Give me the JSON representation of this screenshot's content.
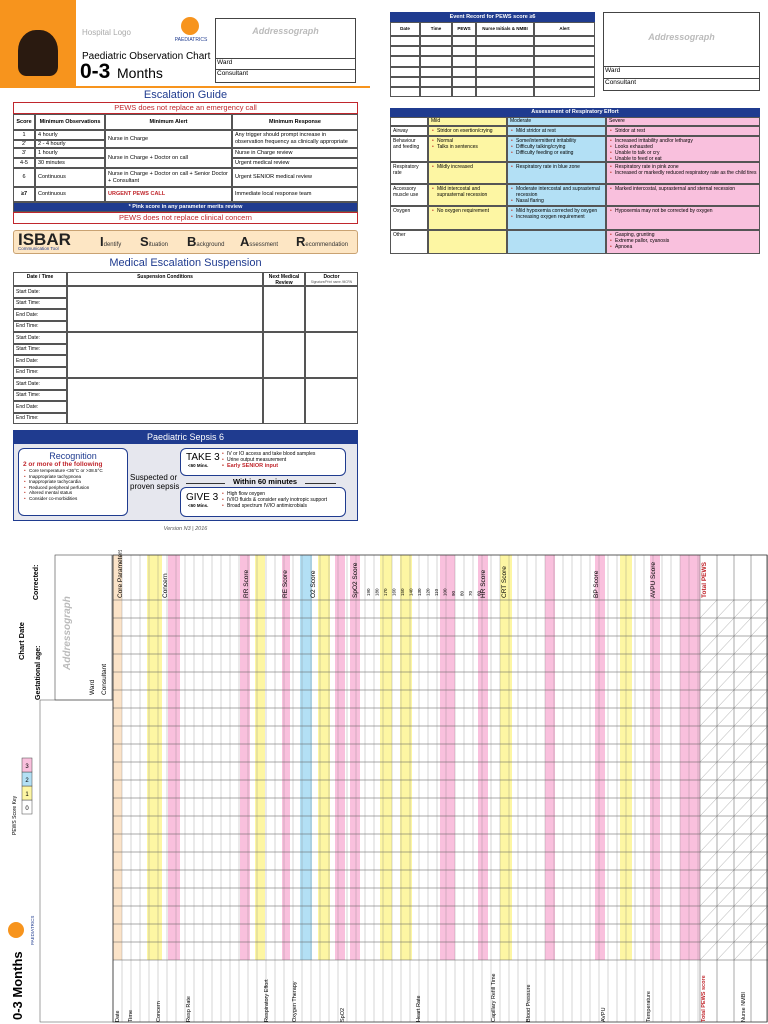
{
  "header": {
    "hospital_logo": "Hospital Logo",
    "paediatrics": "PAEDIATRICS",
    "title": "Paediatric Observation Chart",
    "age": "0-3",
    "age_unit": "Months",
    "addressograph": "Addressograph",
    "ward": "Ward",
    "consultant": "Consultant"
  },
  "escalation": {
    "title": "Escalation Guide",
    "banner": "PEWS does not replace an emergency call",
    "columns": [
      "Score",
      "Minimum Observations",
      "Minimum Alert",
      "Minimum Response"
    ],
    "scores": [
      "1",
      "2'",
      "3'",
      "4-5",
      "6",
      "≥7"
    ],
    "observations": [
      "4 hourly",
      "2 - 4 hourly",
      "1 hourly",
      "30 minutes",
      "Continuous",
      "Continuous"
    ],
    "alerts": [
      "Nurse in Charge",
      "Nurse in Charge + Doctor on call",
      "Nurse in Charge + Doctor on call + Senior Doctor + Consultant",
      "URGENT PEWS CALL"
    ],
    "responses": [
      "Any trigger should prompt increase in observation frequency as clinically appropriate",
      "Nurse in Charge review",
      "Urgent medical review",
      "Urgent SENIOR medical review",
      "Immediate local response team"
    ],
    "footnote": "* Pink score in any parameter merits review",
    "clinical": "PEWS does not replace clinical concern"
  },
  "isbar": {
    "title": "ISBAR",
    "subtitle": "Communication Tool",
    "items": [
      "Identify",
      "Situation",
      "Background",
      "Assessment",
      "Recommendation"
    ]
  },
  "suspension": {
    "title": "Medical Escalation Suspension",
    "columns": [
      "Date / Time",
      "Suspension Conditions",
      "Next Medical Review",
      "Doctor"
    ],
    "doctor_note": "Signature/Print name /MCRN",
    "labels": [
      "Start Date:",
      "Start Time:",
      "End Date:",
      "End Time:"
    ]
  },
  "sepsis": {
    "title": "Paediatric Sepsis 6",
    "recognition": "Recognition",
    "criteria": "2 or more of the following",
    "recognition_items": [
      "Core temperature <36°C or >38.5°C",
      "Inappropriate tachypnoea",
      "Inappropriate tachycardia",
      "Reduced peripheral perfusion",
      "Altered mental status",
      "Consider co-morbidities"
    ],
    "suspected": "Suspected or proven sepsis",
    "take": "TAKE 3",
    "take_time": "<60 Mins.",
    "take_items": [
      "IV or IO access and take blood samples",
      "Urine output measurement",
      "Early SENIOR input"
    ],
    "within": "Within 60 minutes",
    "give": "GIVE 3",
    "give_time": "<60 Mins.",
    "give_items": [
      "High flow oxygen",
      "IV/IO fluids & consider early inotropic support",
      "Broad spectrum IV/IO antimicrobials"
    ]
  },
  "version": "Version N3 | 2016",
  "event_record": {
    "title": "Event Record for PEWS score ≥6",
    "columns": [
      "Date",
      "Time",
      "PEWS",
      "Nurse Initials & NMBI",
      "Alert"
    ]
  },
  "addressograph2": {
    "title": "Addressograph",
    "ward": "Ward",
    "consultant": "Consultant"
  },
  "respiratory": {
    "title": "Assessment of Respiratory Effort",
    "columns": [
      "Mild",
      "Moderate",
      "Severe"
    ],
    "rows": [
      {
        "label": "Airway",
        "mild": [
          "Stridor on exertion/crying"
        ],
        "moderate": [
          "Mild stridor at rest"
        ],
        "severe": [
          "Stridor at rest"
        ]
      },
      {
        "label": "Behaviour and feeding",
        "mild": [
          "Normal",
          "Talks in sentences"
        ],
        "moderate": [
          "Some/intermittent irritability",
          "Difficulty talking/crying",
          "Difficulty feeding or eating"
        ],
        "severe": [
          "Increased irritability and/or lethargy",
          "Looks exhausted",
          "Unable to talk or cry",
          "Unable to feed or eat"
        ]
      },
      {
        "label": "Respiratory rate",
        "mild": [
          "Mildly increased"
        ],
        "moderate": [
          "Respiratory rate in blue zone"
        ],
        "severe": [
          "Respiratory rate in pink zone",
          "Increased or markedly reduced respiratory rate as the child tires"
        ]
      },
      {
        "label": "Accessory muscle use",
        "mild": [
          "Mild intercostal and suprasternal recession"
        ],
        "moderate": [
          "Moderate intercostal and suprasternal recession",
          "Nasal flaring"
        ],
        "severe": [
          "Marked intercostal, suprasternal and sternal recession"
        ]
      },
      {
        "label": "Oxygen",
        "mild": [
          "No oxygen requirement"
        ],
        "moderate": [
          "Mild hypoxemia corrected by oxygen",
          "Increasing oxygen requirement"
        ],
        "severe": [
          "Hypoxemia may not be corrected by oxygen"
        ]
      },
      {
        "label": "Other",
        "mild": [],
        "moderate": [],
        "severe": [
          "Gasping, grunting",
          "Extreme pallor, cyanosis",
          "Apnoea"
        ]
      }
    ]
  },
  "chart": {
    "age": "0-3 Months",
    "chart_date": "Chart Date",
    "corrected": "Corrected:",
    "gestational_age": "Gestational age:",
    "addressograph": "Addressograph",
    "ward": "Ward",
    "consultant": "Consultant",
    "score_key": "PEWS Score Key",
    "key_values": [
      "0",
      "1",
      "2",
      "3"
    ],
    "paediatrics": "PAEDIATRICS",
    "headers": [
      "Core Parameters",
      "Concern",
      "RR Score",
      "RE Score",
      "O2 Score",
      "SpO2 Score",
      "HR Score",
      "CRT Score",
      "BP Score",
      "AVPU Score",
      "Total PEWS"
    ],
    "bottom_labels": [
      "Date",
      "Time",
      "Concern",
      "Resp Rate",
      "Respiratory Effort",
      "Oxygen Therapy",
      "SpO2",
      "Heart Rate",
      "Capillary Refill Time",
      "Blood Pressure",
      "AVPU",
      "Temperature",
      "Total PEWS score",
      "Nurse NMBI"
    ],
    "heart_rate": [
      "190",
      "180",
      "170",
      "160",
      "150",
      "140",
      "130",
      "120",
      "110",
      "100",
      "90",
      "80",
      "70",
      "60"
    ]
  }
}
